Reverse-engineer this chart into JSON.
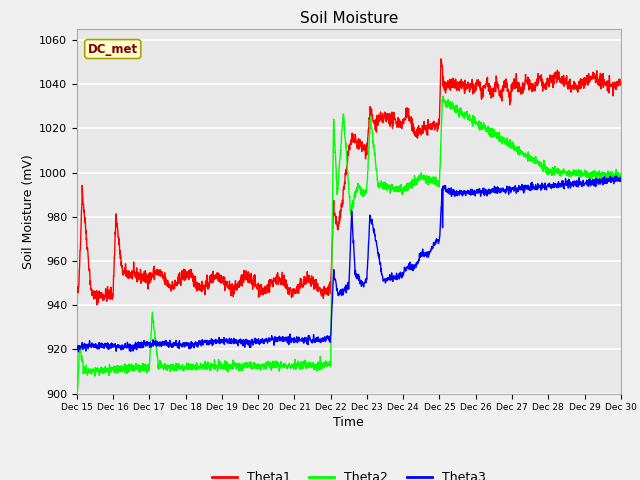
{
  "title": "Soil Moisture",
  "xlabel": "Time",
  "ylabel": "Soil Moisture (mV)",
  "ylim": [
    900,
    1065
  ],
  "yticks": [
    900,
    920,
    940,
    960,
    980,
    1000,
    1020,
    1040,
    1060
  ],
  "annotation": "DC_met",
  "fig_bg_color": "#f0f0f0",
  "plot_bg_color": "#e8e8e8",
  "theta1_color": "#ff0000",
  "theta2_color": "#00ff00",
  "theta3_color": "#0000ff",
  "legend_labels": [
    "Theta1",
    "Theta2",
    "Theta3"
  ],
  "tick_labels": [
    "Dec 15",
    "Dec 16",
    "Dec 17",
    "Dec 18",
    "Dec 19",
    "Dec 20",
    "Dec 21",
    "Dec 22",
    "Dec 23",
    "Dec 24",
    "Dec 25",
    "Dec 26",
    "Dec 27",
    "Dec 28",
    "Dec 29",
    "Dec 30"
  ]
}
